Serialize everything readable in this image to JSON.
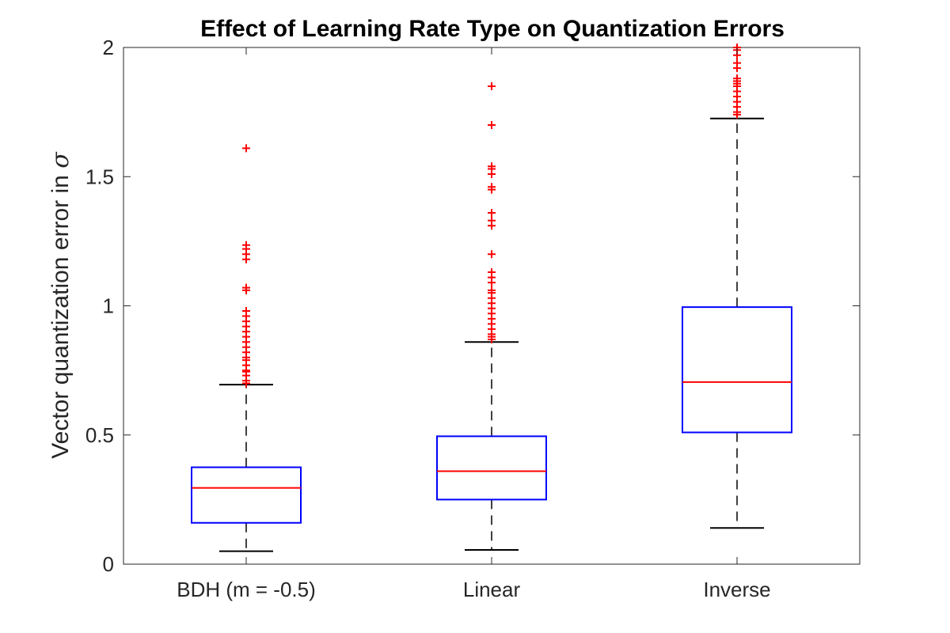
{
  "chart_data": {
    "type": "box",
    "title": "Effect of Learning Rate Type on Quantization Errors",
    "xlabel": "",
    "ylabel": "Vector quantization error in",
    "ylabel_symbol": "σ",
    "ylim": [
      0,
      2
    ],
    "yticks": [
      "0",
      "0.5",
      "1",
      "1.5",
      "2"
    ],
    "grid": false,
    "colors": {
      "box": "#0000ff",
      "median": "#ff0000",
      "whisker": "#000000",
      "outlier": "#ff0000",
      "axis": "#262626"
    },
    "categories": [
      "BDH (m = -0.5)",
      "Linear",
      "Inverse"
    ],
    "boxes": [
      {
        "category": "BDH (m = -0.5)",
        "whisker_low": 0.05,
        "q1": 0.16,
        "median": 0.295,
        "q3": 0.375,
        "whisker_high": 0.695,
        "outliers": [
          0.7,
          0.71,
          0.73,
          0.745,
          0.75,
          0.77,
          0.79,
          0.8,
          0.82,
          0.84,
          0.86,
          0.88,
          0.9,
          0.92,
          0.94,
          0.96,
          0.98,
          1.06,
          1.07,
          1.18,
          1.2,
          1.22,
          1.235,
          1.61
        ]
      },
      {
        "category": "Linear",
        "whisker_low": 0.055,
        "q1": 0.25,
        "median": 0.36,
        "q3": 0.495,
        "whisker_high": 0.86,
        "outliers": [
          0.87,
          0.88,
          0.89,
          0.91,
          0.93,
          0.95,
          0.97,
          0.99,
          1.01,
          1.03,
          1.05,
          1.06,
          1.09,
          1.11,
          1.13,
          1.2,
          1.31,
          1.33,
          1.36,
          1.45,
          1.46,
          1.51,
          1.53,
          1.54,
          1.7,
          1.85
        ]
      },
      {
        "category": "Inverse",
        "whisker_low": 0.14,
        "q1": 0.51,
        "median": 0.705,
        "q3": 0.995,
        "whisker_high": 1.725,
        "outliers": [
          1.74,
          1.75,
          1.77,
          1.79,
          1.81,
          1.83,
          1.85,
          1.86,
          1.87,
          1.88,
          1.92,
          1.94,
          1.97,
          1.99,
          2.0
        ]
      }
    ]
  }
}
